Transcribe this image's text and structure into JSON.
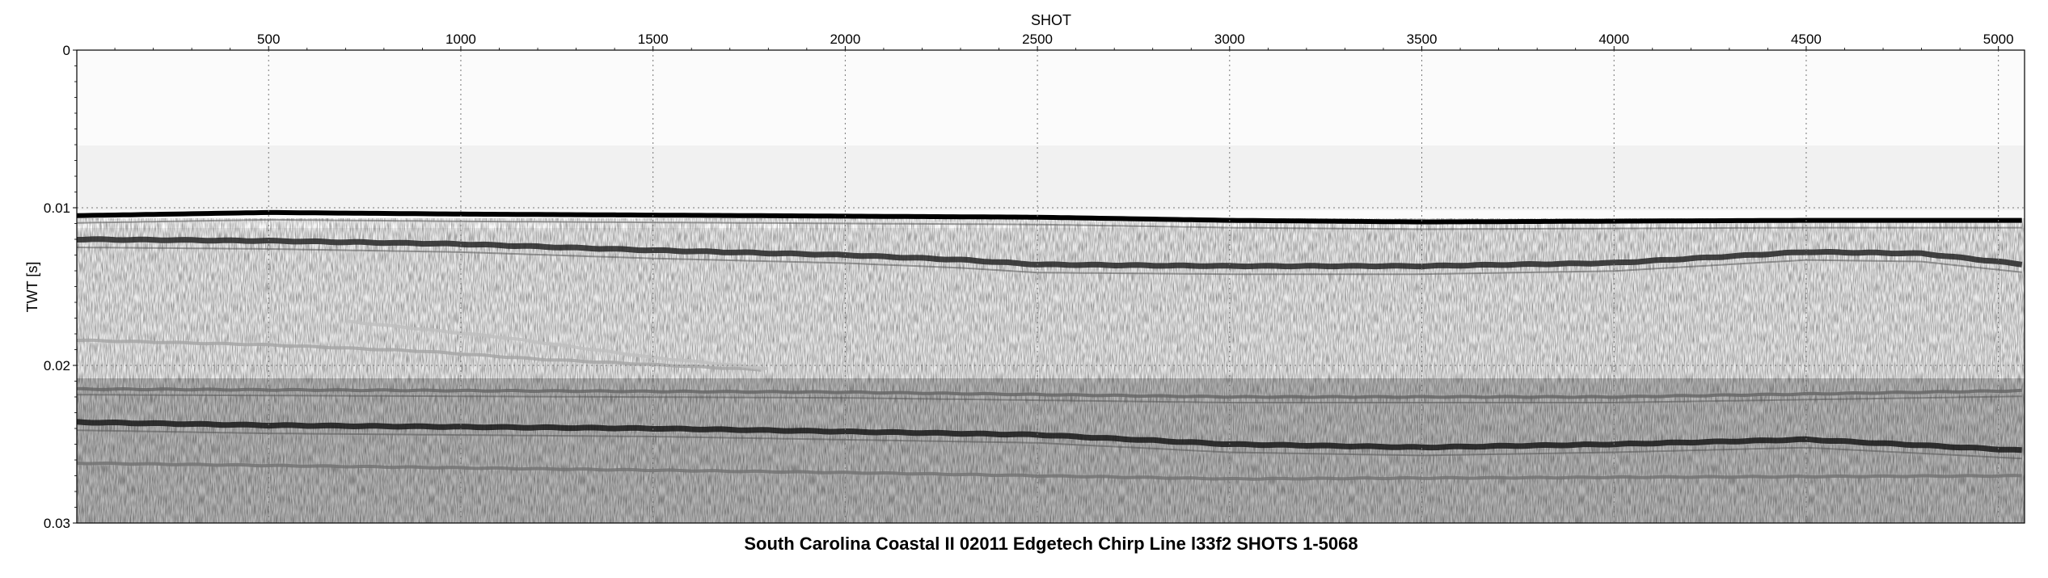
{
  "chart_data": {
    "type": "heatmap",
    "subtype": "seismic-profile",
    "title": "South Carolina Coastal II 02011 Edgetech Chirp Line l33f2 SHOTS 1-5068",
    "xlabel": "SHOT",
    "ylabel": "TWT [s]",
    "xlim": [
      1,
      5068
    ],
    "ylim": [
      0,
      0.03
    ],
    "y_inverted": true,
    "x_ticks": [
      500,
      1000,
      1500,
      2000,
      2500,
      3000,
      3500,
      4000,
      4500,
      5000
    ],
    "x_tick_labels": [
      "500",
      "1000",
      "1500",
      "2000",
      "2500",
      "3000",
      "3500",
      "4000",
      "4500",
      "5000"
    ],
    "y_ticks": [
      0,
      0.01,
      0.02,
      0.03
    ],
    "y_tick_labels": [
      "0",
      "0.01",
      "0.02",
      "0.03"
    ],
    "grid": true,
    "grid_style": "dotted",
    "colormap": "grayscale",
    "reflectors": [
      {
        "name": "seafloor",
        "strength": 1.0,
        "shot": [
          1,
          500,
          1000,
          2500,
          3000,
          3500,
          4500,
          5068
        ],
        "twt": [
          0.0105,
          0.0103,
          0.0104,
          0.0106,
          0.0108,
          0.0109,
          0.0108,
          0.0108
        ]
      },
      {
        "name": "subbottom-1",
        "strength": 0.85,
        "shot": [
          1,
          500,
          1000,
          1500,
          2000,
          2300,
          2500,
          3000,
          3500,
          4000,
          4500,
          4800,
          5068
        ],
        "twt": [
          0.012,
          0.0121,
          0.0123,
          0.0127,
          0.013,
          0.0133,
          0.0136,
          0.0137,
          0.0137,
          0.0135,
          0.0128,
          0.0129,
          0.0136
        ]
      },
      {
        "name": "dipping-1",
        "strength": 0.35,
        "shot": [
          1,
          500,
          900,
          1200,
          1800
        ],
        "twt": [
          0.0184,
          0.0187,
          0.0191,
          0.0196,
          0.0203
        ]
      },
      {
        "name": "dipping-2",
        "strength": 0.25,
        "shot": [
          700,
          1100,
          1500,
          1800
        ],
        "twt": [
          0.0172,
          0.0182,
          0.0195,
          0.0202
        ]
      },
      {
        "name": "subbottom-2",
        "strength": 0.6,
        "shot": [
          1,
          1000,
          2000,
          3000,
          4000,
          5068
        ],
        "twt": [
          0.0215,
          0.0216,
          0.0217,
          0.022,
          0.022,
          0.0216
        ]
      },
      {
        "name": "subbottom-3",
        "strength": 0.9,
        "shot": [
          1,
          500,
          1500,
          2500,
          3000,
          3500,
          4000,
          4500,
          5068
        ],
        "twt": [
          0.0236,
          0.0238,
          0.024,
          0.0244,
          0.025,
          0.0252,
          0.025,
          0.0247,
          0.0254
        ]
      },
      {
        "name": "subbottom-4",
        "strength": 0.55,
        "shot": [
          1,
          1000,
          2000,
          3000,
          4000,
          5068
        ],
        "twt": [
          0.0262,
          0.0265,
          0.0268,
          0.0272,
          0.0271,
          0.027
        ]
      }
    ],
    "noise_band_twt": [
      0.0215,
      0.03
    ]
  }
}
